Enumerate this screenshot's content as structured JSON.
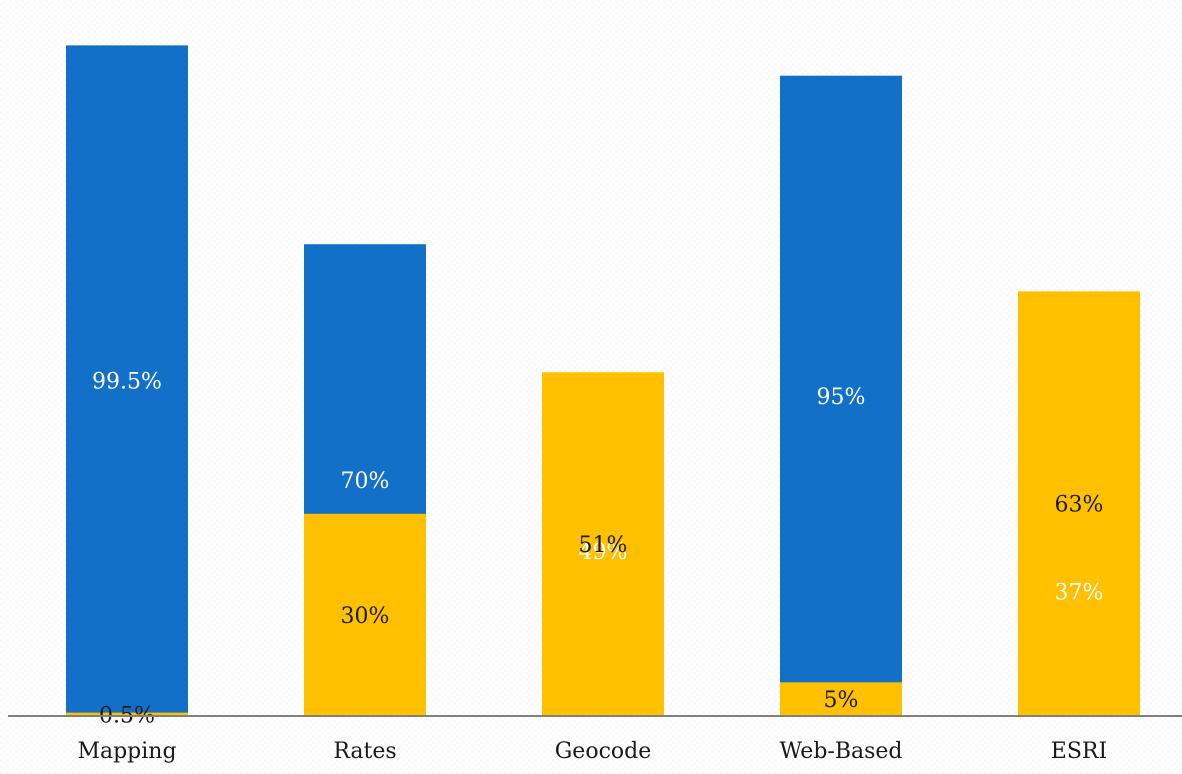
{
  "chart_data": {
    "type": "bar",
    "stacked": true,
    "categories": [
      "Mapping",
      "Rates",
      "Geocode",
      "Web-Based",
      "ESRI"
    ],
    "series": [
      {
        "color": "#1270C8",
        "label_color": "#ffffff",
        "values": [
          99.5,
          70,
          49,
          95,
          37
        ],
        "labels": [
          "99.5%",
          "70%",
          "49%",
          "95%",
          "37%"
        ]
      },
      {
        "color": "#FFC000",
        "label_color": "#1a1a1a",
        "values": [
          0.5,
          30,
          51,
          5,
          63
        ],
        "labels": [
          "0.5%",
          "30%",
          "51%",
          "5%",
          "63%"
        ]
      }
    ],
    "ylim": [
      0,
      100
    ],
    "grid": false,
    "legend": "none",
    "title": "",
    "xlabel": "",
    "ylabel": ""
  }
}
